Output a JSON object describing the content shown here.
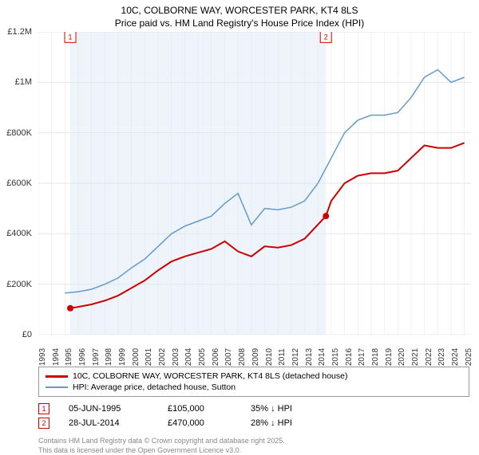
{
  "title_line1": "10C, COLBORNE WAY, WORCESTER PARK, KT4 8LS",
  "title_line2": "Price paid vs. HM Land Registry's House Price Index (HPI)",
  "chart": {
    "type": "line",
    "background_color": "#ffffff",
    "plot_band_color": "#eef4fb",
    "grid_color": "#e6e6e6",
    "ylim": [
      0,
      1200000
    ],
    "ytick_step": 200000,
    "y_labels": [
      "£0",
      "£200K",
      "£400K",
      "£600K",
      "£800K",
      "£1M",
      "£1.2M"
    ],
    "x_years": [
      1993,
      1994,
      1995,
      1996,
      1997,
      1998,
      1999,
      2000,
      2001,
      2002,
      2003,
      2004,
      2005,
      2006,
      2007,
      2008,
      2009,
      2010,
      2011,
      2012,
      2013,
      2014,
      2015,
      2016,
      2017,
      2018,
      2019,
      2020,
      2021,
      2022,
      2023,
      2024,
      2025
    ],
    "x_range": [
      1993,
      2025.5
    ],
    "plot_band": [
      1995.4,
      2014.6
    ],
    "series": [
      {
        "name": "property",
        "color": "#cc0000",
        "width": 2,
        "data": [
          [
            1995.4,
            105000
          ],
          [
            1996,
            110000
          ],
          [
            1997,
            120000
          ],
          [
            1998,
            135000
          ],
          [
            1999,
            155000
          ],
          [
            2000,
            185000
          ],
          [
            2001,
            215000
          ],
          [
            2002,
            255000
          ],
          [
            2003,
            290000
          ],
          [
            2004,
            310000
          ],
          [
            2005,
            325000
          ],
          [
            2006,
            340000
          ],
          [
            2007,
            370000
          ],
          [
            2008,
            330000
          ],
          [
            2009,
            310000
          ],
          [
            2010,
            350000
          ],
          [
            2011,
            345000
          ],
          [
            2012,
            355000
          ],
          [
            2013,
            380000
          ],
          [
            2014.6,
            470000
          ],
          [
            2015,
            530000
          ],
          [
            2016,
            600000
          ],
          [
            2017,
            630000
          ],
          [
            2018,
            640000
          ],
          [
            2019,
            640000
          ],
          [
            2020,
            650000
          ],
          [
            2021,
            700000
          ],
          [
            2022,
            750000
          ],
          [
            2023,
            740000
          ],
          [
            2024,
            740000
          ],
          [
            2025,
            760000
          ]
        ]
      },
      {
        "name": "hpi",
        "color": "#6699cc",
        "width": 1.5,
        "data": [
          [
            1995,
            165000
          ],
          [
            1996,
            170000
          ],
          [
            1997,
            180000
          ],
          [
            1998,
            200000
          ],
          [
            1999,
            225000
          ],
          [
            2000,
            265000
          ],
          [
            2001,
            300000
          ],
          [
            2002,
            350000
          ],
          [
            2003,
            400000
          ],
          [
            2004,
            430000
          ],
          [
            2005,
            450000
          ],
          [
            2006,
            470000
          ],
          [
            2007,
            520000
          ],
          [
            2008,
            560000
          ],
          [
            2009,
            435000
          ],
          [
            2010,
            500000
          ],
          [
            2011,
            495000
          ],
          [
            2012,
            505000
          ],
          [
            2013,
            530000
          ],
          [
            2014,
            600000
          ],
          [
            2015,
            700000
          ],
          [
            2016,
            800000
          ],
          [
            2017,
            850000
          ],
          [
            2018,
            870000
          ],
          [
            2019,
            870000
          ],
          [
            2020,
            880000
          ],
          [
            2021,
            940000
          ],
          [
            2022,
            1020000
          ],
          [
            2023,
            1050000
          ],
          [
            2024,
            1000000
          ],
          [
            2025,
            1020000
          ]
        ]
      }
    ],
    "markers": [
      {
        "n": "1",
        "year": 1995.4,
        "y_pos": 1180000,
        "color": "#cc0000"
      },
      {
        "n": "2",
        "year": 2014.6,
        "y_pos": 1180000,
        "color": "#cc0000"
      }
    ],
    "sale_points": [
      {
        "year": 1995.4,
        "value": 105000,
        "color": "#cc0000"
      },
      {
        "year": 2014.6,
        "value": 470000,
        "color": "#cc0000"
      }
    ]
  },
  "legend": {
    "property": {
      "color": "#cc0000",
      "label": "10C, COLBORNE WAY, WORCESTER PARK, KT4 8LS (detached house)"
    },
    "hpi": {
      "color": "#6699cc",
      "label": "HPI: Average price, detached house, Sutton"
    }
  },
  "sales": [
    {
      "n": "1",
      "color": "#cc0000",
      "date": "05-JUN-1995",
      "price": "£105,000",
      "pct": "35% ↓ HPI"
    },
    {
      "n": "2",
      "color": "#cc0000",
      "date": "28-JUL-2014",
      "price": "£470,000",
      "pct": "28% ↓ HPI"
    }
  ],
  "footer1": "Contains HM Land Registry data © Crown copyright and database right 2025.",
  "footer2": "This data is licensed under the Open Government Licence v3.0."
}
